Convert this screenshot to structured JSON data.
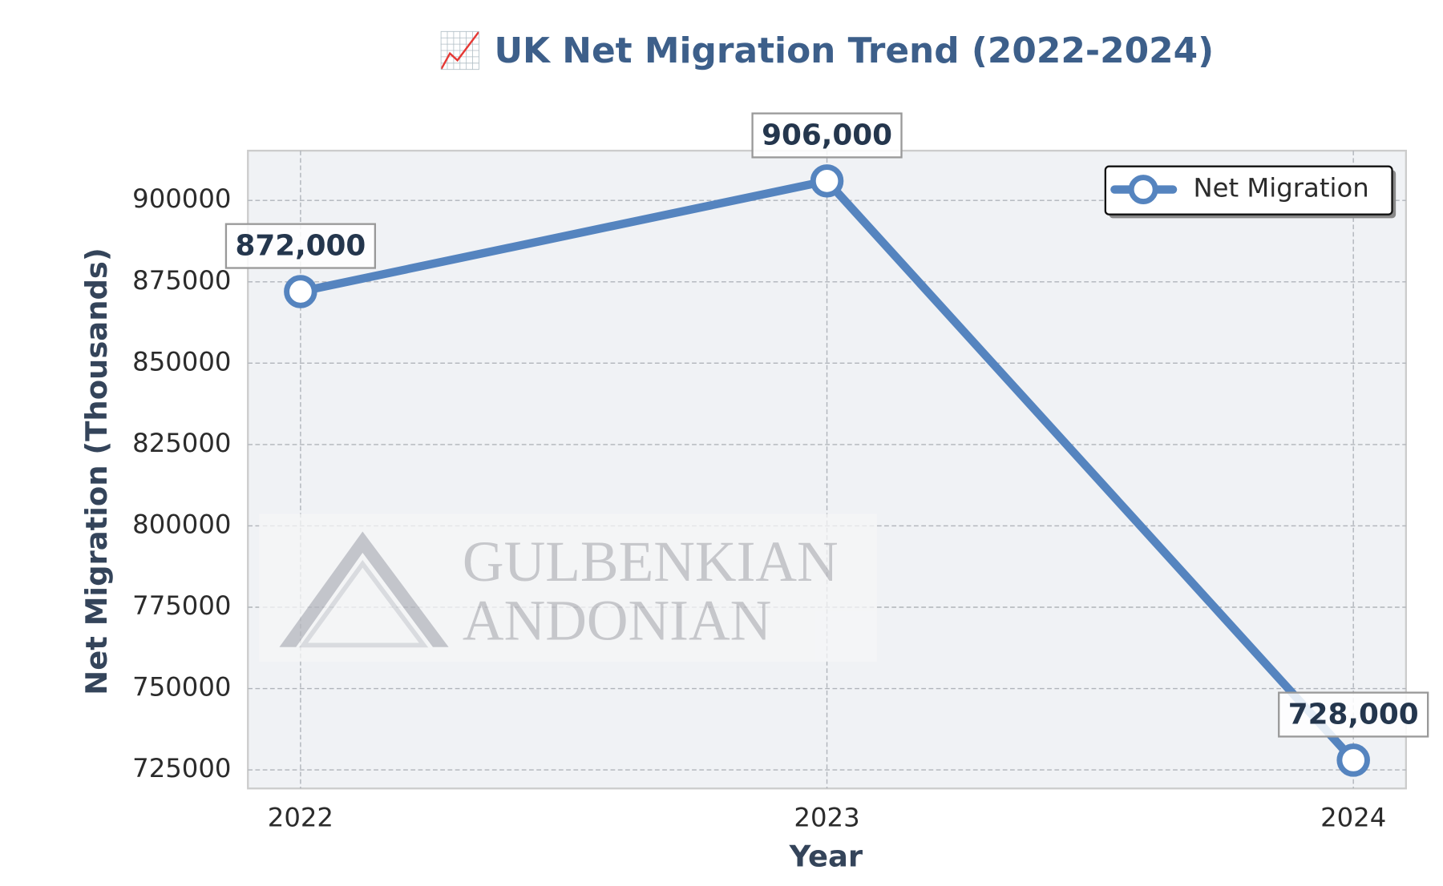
{
  "chart_data": {
    "type": "line",
    "title": "📈 UK Net Migration Trend (2022-2024)",
    "x_label": "Year",
    "y_label": "Net Migration (Thousands)",
    "watermark": [
      "GULBENKIAN",
      "ANDONIAN"
    ],
    "x": [
      2022,
      2023,
      2024
    ],
    "xlim": [
      2021.9,
      2024.1
    ],
    "xticks": [
      2022,
      2023,
      2024
    ],
    "ylim": [
      719300,
      915300
    ],
    "yticks": [
      725000,
      750000,
      775000,
      800000,
      825000,
      850000,
      875000,
      900000
    ],
    "grid": true,
    "legend": "upper right",
    "series": [
      {
        "name": "Net Migration",
        "color": "#5584bf",
        "values": [
          872000,
          906000,
          728000
        ],
        "value_labels": [
          "872,000",
          "906,000",
          "728,000"
        ]
      }
    ]
  }
}
